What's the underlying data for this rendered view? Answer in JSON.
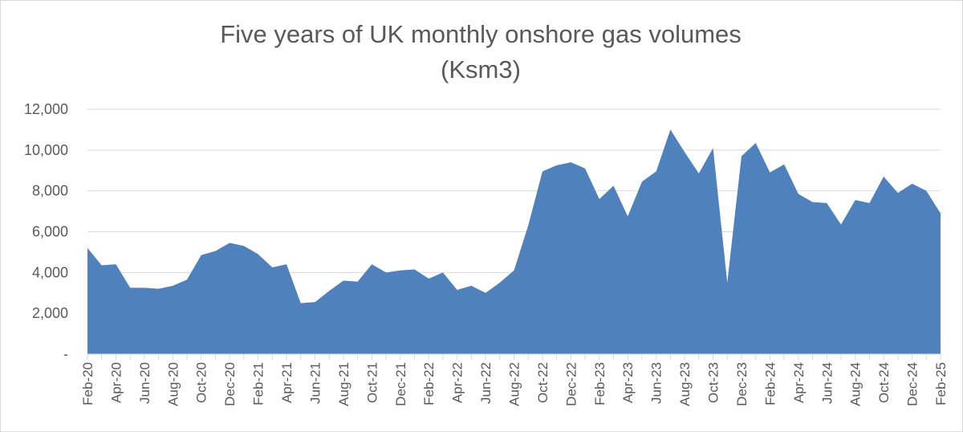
{
  "chart_data": {
    "type": "area",
    "title": "Five years of UK monthly onshore gas volumes",
    "subtitle": "(Ksm3)",
    "xlabel": "",
    "ylabel": "",
    "ylim": [
      0,
      12000
    ],
    "yticks": [
      0,
      2000,
      4000,
      6000,
      8000,
      10000,
      12000
    ],
    "ytick_labels": [
      "-",
      "2,000",
      "4,000",
      "6,000",
      "8,000",
      "10,000",
      "12,000"
    ],
    "grid": true,
    "legend": "none",
    "color": "#4f81bd",
    "x": [
      "Feb-20",
      "Mar-20",
      "Apr-20",
      "May-20",
      "Jun-20",
      "Jul-20",
      "Aug-20",
      "Sep-20",
      "Oct-20",
      "Nov-20",
      "Dec-20",
      "Jan-21",
      "Feb-21",
      "Mar-21",
      "Apr-21",
      "May-21",
      "Jun-21",
      "Jul-21",
      "Aug-21",
      "Sep-21",
      "Oct-21",
      "Nov-21",
      "Dec-21",
      "Jan-22",
      "Feb-22",
      "Mar-22",
      "Apr-22",
      "May-22",
      "Jun-22",
      "Jul-22",
      "Aug-22",
      "Sep-22",
      "Oct-22",
      "Nov-22",
      "Dec-22",
      "Jan-23",
      "Feb-23",
      "Mar-23",
      "Apr-23",
      "May-23",
      "Jun-23",
      "Jul-23",
      "Aug-23",
      "Sep-23",
      "Oct-23",
      "Nov-23",
      "Dec-23",
      "Jan-24",
      "Feb-24",
      "Mar-24",
      "Apr-24",
      "May-24",
      "Jun-24",
      "Jul-24",
      "Aug-24",
      "Sep-24",
      "Oct-24",
      "Nov-24",
      "Dec-24",
      "Jan-25",
      "Feb-25"
    ],
    "x_tick_labels": [
      "Feb-20",
      "Apr-20",
      "Jun-20",
      "Aug-20",
      "Oct-20",
      "Dec-20",
      "Feb-21",
      "Apr-21",
      "Jun-21",
      "Aug-21",
      "Oct-21",
      "Dec-21",
      "Feb-22",
      "Apr-22",
      "Jun-22",
      "Aug-22",
      "Oct-22",
      "Dec-22",
      "Feb-23",
      "Apr-23",
      "Jun-23",
      "Aug-23",
      "Oct-23",
      "Dec-23",
      "Feb-24",
      "Apr-24",
      "Jun-24",
      "Aug-24",
      "Oct-24",
      "Dec-24",
      "Feb-25"
    ],
    "series": [
      {
        "values": [
          5200,
          4350,
          4400,
          3250,
          3250,
          3200,
          3350,
          3650,
          4850,
          5050,
          5450,
          5300,
          4900,
          4250,
          4400,
          2500,
          2550,
          3100,
          3600,
          3550,
          4400,
          4000,
          4100,
          4150,
          3700,
          4000,
          3150,
          3350,
          3000,
          3500,
          4100,
          6300,
          8950,
          9250,
          9400,
          9100,
          7600,
          8250,
          6750,
          8450,
          8950,
          11000,
          9900,
          8850,
          10100,
          3500,
          9700,
          10350,
          8900,
          9300,
          7850,
          7450,
          7400,
          6350,
          7550,
          7400,
          8700,
          7900,
          8350,
          8000,
          6900
        ]
      }
    ]
  }
}
